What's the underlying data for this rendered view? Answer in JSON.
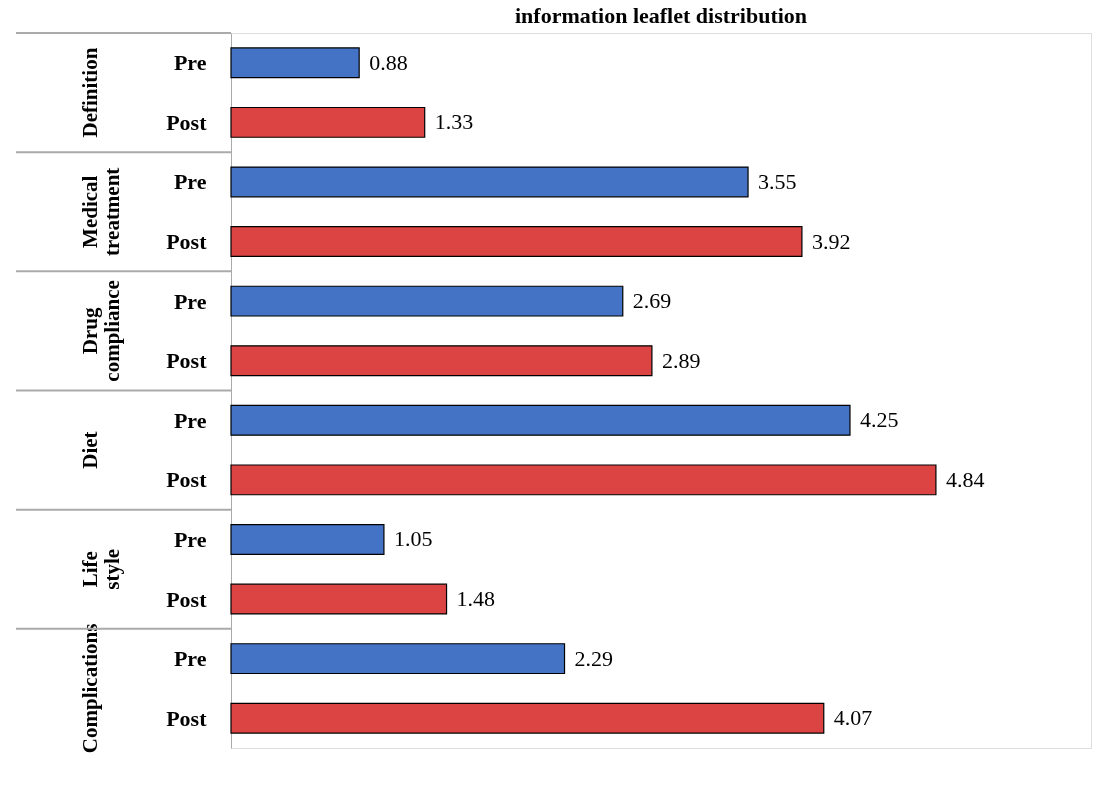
{
  "chart_data": {
    "type": "bar",
    "orientation": "horizontal",
    "title": "information leaflet distribution",
    "categories": [
      "Pre",
      "Post",
      "Pre",
      "Post",
      "Pre",
      "Post",
      "Pre",
      "Post",
      "Pre",
      "Post",
      "Pre",
      "Post"
    ],
    "values": [
      0.88,
      1.33,
      3.55,
      3.92,
      2.69,
      2.89,
      4.25,
      4.84,
      1.05,
      1.48,
      2.29,
      4.07
    ],
    "colors": [
      "#4472c4",
      "#dc4444",
      "#4472c4",
      "#dc4444",
      "#4472c4",
      "#dc4444",
      "#4472c4",
      "#dc4444",
      "#4472c4",
      "#dc4444",
      "#4472c4",
      "#dc4444"
    ],
    "annotations": [
      "Definition",
      "Medical treatment",
      "Drug compliance",
      "Diet",
      "Life style",
      "Complications"
    ],
    "data_labels": true
  }
}
